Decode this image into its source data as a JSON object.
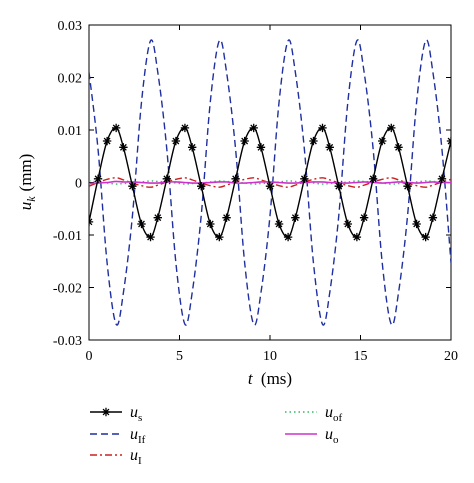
{
  "chart_data": {
    "type": "line",
    "title": "",
    "xlabel": {
      "main": "t",
      "unit": "(ms)"
    },
    "ylabel": {
      "main": "u",
      "sub": "k",
      "unit": "(mm)"
    },
    "xlim": [
      0,
      20
    ],
    "ylim": [
      -0.03,
      0.03
    ],
    "x_ticks": [
      0,
      5,
      10,
      15,
      20
    ],
    "x_tick_labels": [
      "0",
      "5",
      "10",
      "15",
      "20"
    ],
    "y_ticks": [
      0.03,
      0.02,
      0.01,
      0,
      -0.01,
      -0.02,
      -0.03
    ],
    "y_tick_labels": [
      "0.03",
      "0.02",
      "0.01",
      "0",
      "-0.01",
      "-0.02",
      "-0.03"
    ],
    "grid": false,
    "legend_position": "bottom",
    "series": [
      {
        "label_main": "u",
        "label_sub": "s",
        "color": "#000000",
        "style": "solid-star",
        "x": [
          0,
          0.5,
          1.0,
          1.5,
          1.9,
          2.4,
          2.9,
          3.4,
          3.8,
          4.3,
          4.8,
          5.3,
          5.7,
          6.2,
          6.7,
          7.2,
          7.6,
          8.1,
          8.6,
          9.1,
          9.5,
          10.0,
          10.5,
          11.0,
          11.4,
          11.9,
          12.4,
          12.9,
          13.3,
          13.8,
          14.3,
          14.8,
          15.2,
          15.7,
          16.2,
          16.7,
          17.1,
          17.6,
          18.1,
          18.6,
          19.0,
          19.5,
          20.0
        ],
        "y": [
          -0.0075,
          0.0007,
          0.0079,
          0.0104,
          0.0067,
          -0.0007,
          -0.0079,
          -0.0104,
          -0.0067,
          0.0007,
          0.0079,
          0.0104,
          0.0067,
          -0.0007,
          -0.0079,
          -0.0104,
          -0.0067,
          0.0007,
          0.0079,
          0.0104,
          0.0067,
          -0.0007,
          -0.0079,
          -0.0104,
          -0.0067,
          0.0007,
          0.0079,
          0.0104,
          0.0067,
          -0.0007,
          -0.0079,
          -0.0104,
          -0.0067,
          0.0007,
          0.0079,
          0.0104,
          0.0067,
          -0.0007,
          -0.0079,
          -0.0104,
          -0.0067,
          0.0007,
          0.0079
        ]
      },
      {
        "label_main": "u",
        "label_sub": "If",
        "color": "#1f2f9f",
        "style": "dashed",
        "x": [
          0,
          0.5,
          1.0,
          1.5,
          1.9,
          2.4,
          2.9,
          3.4,
          3.8,
          4.3,
          4.8,
          5.3,
          5.7,
          6.2,
          6.7,
          7.2,
          7.6,
          8.1,
          8.6,
          9.1,
          9.5,
          10.0,
          10.5,
          11.0,
          11.4,
          11.9,
          12.4,
          12.9,
          13.3,
          13.8,
          14.3,
          14.8,
          15.2,
          15.7,
          16.2,
          16.7,
          17.1,
          17.6,
          18.1,
          18.6,
          19.0,
          19.5,
          20.0
        ],
        "y": [
          0.021,
          0.0063,
          -0.0153,
          -0.027,
          -0.021,
          -0.0063,
          0.0153,
          0.027,
          0.021,
          0.0063,
          -0.0153,
          -0.027,
          -0.021,
          -0.0063,
          0.0153,
          0.027,
          0.021,
          0.0063,
          -0.0153,
          -0.027,
          -0.021,
          -0.0063,
          0.0153,
          0.027,
          0.021,
          0.0063,
          -0.0153,
          -0.027,
          -0.021,
          -0.0063,
          0.0153,
          0.027,
          0.021,
          0.0063,
          -0.0153,
          -0.027,
          -0.021,
          -0.0063,
          0.0153,
          0.027,
          0.021,
          0.0063,
          -0.0153
        ]
      },
      {
        "label_main": "u",
        "label_sub": "I",
        "color": "#cc2020",
        "style": "dashdot",
        "x": [
          0,
          0.5,
          1.0,
          1.5,
          1.9,
          2.4,
          2.9,
          3.4,
          3.8,
          4.3,
          4.8,
          5.3,
          5.7,
          6.2,
          6.7,
          7.2,
          7.6,
          8.1,
          8.6,
          9.1,
          9.5,
          10.0,
          10.5,
          11.0,
          11.4,
          11.9,
          12.4,
          12.9,
          13.3,
          13.8,
          14.3,
          14.8,
          15.2,
          15.7,
          16.2,
          16.7,
          17.1,
          17.6,
          18.1,
          18.6,
          19.0,
          19.5,
          20.0
        ],
        "y": [
          -0.0007,
          0.0,
          0.0006,
          0.0009,
          0.0005,
          -0.0001,
          -0.0006,
          -0.0009,
          -0.0005,
          0.0001,
          0.0006,
          0.0009,
          0.0005,
          -0.0001,
          -0.0006,
          -0.0009,
          -0.0005,
          0.0001,
          0.0006,
          0.0009,
          0.0005,
          -0.0001,
          -0.0006,
          -0.0009,
          -0.0005,
          0.0001,
          0.0006,
          0.0009,
          0.0005,
          -0.0001,
          -0.0006,
          -0.0009,
          -0.0005,
          0.0001,
          0.0006,
          0.0009,
          0.0005,
          -0.0001,
          -0.0006,
          -0.0009,
          -0.0005,
          0.0001,
          0.0006
        ]
      },
      {
        "label_main": "u",
        "label_sub": "of",
        "color": "#33b864",
        "style": "dotted",
        "x": [
          0,
          0.5,
          1.0,
          1.5,
          1.9,
          2.4,
          2.9,
          3.4,
          3.8,
          4.3,
          4.8,
          5.3,
          5.7,
          6.2,
          6.7,
          7.2,
          7.6,
          8.1,
          8.6,
          9.1,
          9.5,
          10.0,
          10.5,
          11.0,
          11.4,
          11.9,
          12.4,
          12.9,
          13.3,
          13.8,
          14.3,
          14.8,
          15.2,
          15.7,
          16.2,
          16.7,
          17.1,
          17.6,
          18.1,
          18.6,
          19.0,
          19.5,
          20.0
        ],
        "y": [
          0.0003,
          0.0001,
          -0.0001,
          -0.0003,
          -0.0002,
          -0.0001,
          0.0001,
          0.0003,
          0.0002,
          0.0001,
          -0.0001,
          -0.0003,
          -0.0002,
          -0.0001,
          0.0001,
          0.0003,
          0.0002,
          0.0001,
          -0.0001,
          -0.0003,
          -0.0002,
          -0.0001,
          0.0001,
          0.0003,
          0.0002,
          0.0001,
          -0.0001,
          -0.0003,
          -0.0002,
          -0.0001,
          0.0001,
          0.0003,
          0.0002,
          0.0001,
          -0.0001,
          -0.0003,
          -0.0002,
          -0.0001,
          0.0001,
          0.0003,
          0.0002,
          0.0001,
          -0.0001
        ]
      },
      {
        "label_main": "u",
        "label_sub": "o",
        "color": "#cc33cc",
        "style": "solid",
        "x": [
          0,
          0.5,
          1.0,
          1.5,
          1.9,
          2.4,
          2.9,
          3.4,
          3.8,
          4.3,
          4.8,
          5.3,
          5.7,
          6.2,
          6.7,
          7.2,
          7.6,
          8.1,
          8.6,
          9.1,
          9.5,
          10.0,
          10.5,
          11.0,
          11.4,
          11.9,
          12.4,
          12.9,
          13.3,
          13.8,
          14.3,
          14.8,
          15.2,
          15.7,
          16.2,
          16.7,
          17.1,
          17.6,
          18.1,
          18.6,
          19.0,
          19.5,
          20.0
        ],
        "y": [
          -0.0002,
          -0.0001,
          0.0,
          0.0002,
          0.0001,
          0.0001,
          0.0,
          -0.0001,
          -0.0001,
          0.0001,
          0.0001,
          0.0,
          -0.0001,
          -0.0001,
          0.0,
          0.0001,
          0.0001,
          -0.0001,
          -0.0001,
          0.0,
          0.0001,
          0.0001,
          0.0,
          -0.0001,
          -0.0001,
          0.0,
          0.0001,
          0.0001,
          0.0,
          -0.0001,
          -0.0001,
          0.0,
          0.0001,
          0.0,
          -0.0001,
          0.0,
          0.0001,
          0.0,
          -0.0001,
          0.0,
          0.0001,
          0.0,
          0.0
        ]
      }
    ]
  }
}
